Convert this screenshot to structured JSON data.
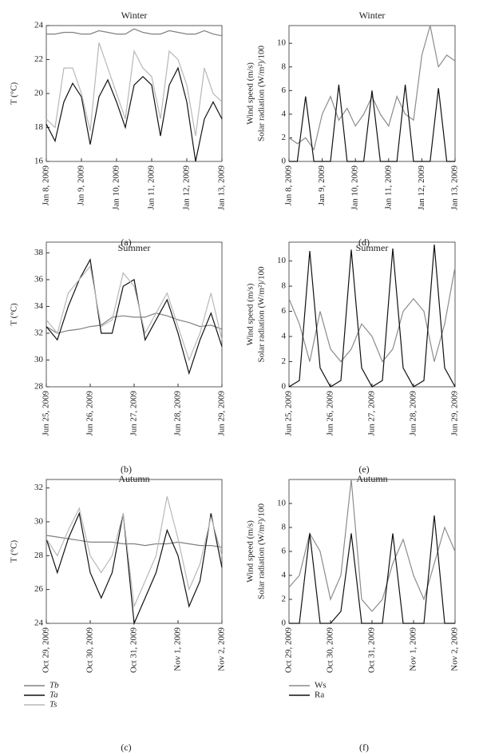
{
  "chart_data": [
    {
      "type": "line",
      "title": "Winter",
      "caption": "(a)",
      "ylabel": [
        "T (°C)"
      ],
      "x": [
        8,
        8.25,
        8.5,
        8.75,
        9,
        9.25,
        9.5,
        9.75,
        10,
        10.25,
        10.5,
        10.75,
        11,
        11.25,
        11.5,
        11.75,
        12,
        12.25,
        12.5,
        12.75,
        13
      ],
      "xlim": [
        8,
        13
      ],
      "xticks": [
        {
          "value": 8,
          "label": "Jan 8, 2009"
        },
        {
          "value": 9,
          "label": "Jan 9, 2009"
        },
        {
          "value": 10,
          "label": "Jan 10, 2009"
        },
        {
          "value": 11,
          "label": "Jan 11, 2009"
        },
        {
          "value": 12,
          "label": "Jan 12, 2009"
        },
        {
          "value": 13,
          "label": "Jan 13, 2009"
        }
      ],
      "ylim": [
        16,
        24
      ],
      "yticks": [
        16,
        18,
        20,
        22,
        24
      ],
      "legend": false,
      "series": [
        {
          "name": "Tb",
          "color": "#808080",
          "values": [
            23.5,
            23.5,
            23.6,
            23.6,
            23.5,
            23.5,
            23.7,
            23.6,
            23.5,
            23.5,
            23.8,
            23.6,
            23.5,
            23.5,
            23.7,
            23.6,
            23.5,
            23.5,
            23.7,
            23.5,
            23.4
          ]
        },
        {
          "name": "Ta",
          "color": "#111111",
          "values": [
            18.2,
            17.2,
            19.5,
            20.6,
            19.8,
            17.0,
            19.8,
            20.8,
            19.5,
            18.0,
            20.5,
            21.0,
            20.5,
            17.5,
            20.5,
            21.5,
            19.5,
            16.0,
            18.5,
            19.5,
            18.5
          ]
        },
        {
          "name": "Ts",
          "color": "#b8b8b8",
          "values": [
            18.5,
            18.0,
            21.5,
            21.5,
            20.0,
            17.8,
            23.0,
            21.5,
            20.0,
            18.5,
            22.5,
            21.5,
            21.0,
            18.5,
            22.5,
            22.0,
            20.5,
            17.5,
            21.5,
            20.0,
            19.5
          ]
        }
      ]
    },
    {
      "type": "line",
      "title": "Summer",
      "caption": "(b)",
      "ylabel": [
        "T (°C)"
      ],
      "x": [
        176,
        176.25,
        176.5,
        176.75,
        177,
        177.25,
        177.5,
        177.75,
        178,
        178.25,
        178.5,
        178.75,
        179,
        179.25,
        179.5,
        179.75,
        180
      ],
      "xlim": [
        176,
        180
      ],
      "xticks": [
        {
          "value": 176,
          "label": "Jun 25, 2009"
        },
        {
          "value": 177,
          "label": "Jun 26, 2009"
        },
        {
          "value": 178,
          "label": "Jun 27, 2009"
        },
        {
          "value": 179,
          "label": "Jun 28, 2009"
        },
        {
          "value": 180,
          "label": "Jun 29, 2009"
        }
      ],
      "ylim": [
        28,
        38.8
      ],
      "yticks": [
        28,
        30,
        32,
        34,
        36,
        38
      ],
      "legend": false,
      "series": [
        {
          "name": "Tb",
          "color": "#808080",
          "values": [
            32.5,
            32,
            32.2,
            32.3,
            32.5,
            32.6,
            33.2,
            33.3,
            33.2,
            33.2,
            33.5,
            33.3,
            33,
            32.8,
            32.5,
            32.6,
            32.3
          ]
        },
        {
          "name": "Ta",
          "color": "#111111",
          "values": [
            32.5,
            31.5,
            34,
            36,
            37.5,
            32,
            32,
            35.5,
            36,
            31.5,
            33,
            34.5,
            32,
            29,
            31.5,
            33.5,
            31
          ]
        },
        {
          "name": "Ts",
          "color": "#b8b8b8",
          "values": [
            33,
            32,
            35,
            36,
            37,
            32.5,
            33,
            36.5,
            35.5,
            32,
            33.5,
            35,
            32.5,
            30,
            32,
            35,
            31.5
          ]
        }
      ]
    },
    {
      "type": "line",
      "title": "Autumn",
      "caption": "(c)",
      "ylabel": [
        "T (°C)"
      ],
      "x": [
        302,
        302.25,
        302.5,
        302.75,
        303,
        303.25,
        303.5,
        303.75,
        304,
        304.25,
        304.5,
        304.75,
        305,
        305.25,
        305.5,
        305.75,
        306
      ],
      "xlim": [
        302,
        306
      ],
      "xticks": [
        {
          "value": 302,
          "label": "Oct 29, 2009"
        },
        {
          "value": 303,
          "label": "Oct 30, 2009"
        },
        {
          "value": 304,
          "label": "Oct 31, 2009"
        },
        {
          "value": 305,
          "label": "Nov 1, 2009"
        },
        {
          "value": 306,
          "label": "Nov 2, 2009"
        }
      ],
      "ylim": [
        24,
        32.5
      ],
      "yticks": [
        24,
        26,
        28,
        30,
        32
      ],
      "legend": true,
      "series": [
        {
          "name": "Tb",
          "color": "#808080",
          "values": [
            29.2,
            29.1,
            29,
            28.9,
            28.8,
            28.8,
            28.8,
            28.7,
            28.7,
            28.6,
            28.7,
            28.7,
            28.8,
            28.7,
            28.6,
            28.6,
            28.5
          ]
        },
        {
          "name": "Ta",
          "color": "#111111",
          "values": [
            29,
            27,
            29,
            30.5,
            27,
            25.5,
            27,
            30.5,
            24,
            25.5,
            27,
            29.5,
            28,
            25,
            26.5,
            30.5,
            27.3
          ]
        },
        {
          "name": "Ts",
          "color": "#b8b8b8",
          "values": [
            29,
            28,
            29.5,
            30.8,
            28,
            27,
            28,
            30.5,
            25,
            26.5,
            28,
            31.5,
            29,
            26,
            27.5,
            30.3,
            28
          ]
        }
      ]
    },
    {
      "type": "line",
      "title": "Winter",
      "caption": "(d)",
      "ylabel": [
        "Wind speed (m/s)",
        "Solar radiation (W/m²)/100"
      ],
      "x": [
        8,
        8.25,
        8.5,
        8.75,
        9,
        9.25,
        9.5,
        9.75,
        10,
        10.25,
        10.5,
        10.75,
        11,
        11.25,
        11.5,
        11.75,
        12,
        12.25,
        12.5,
        12.75,
        13
      ],
      "xlim": [
        8,
        13
      ],
      "xticks": [
        {
          "value": 8,
          "label": "Jan 8, 2009"
        },
        {
          "value": 9,
          "label": "Jan 9, 2009"
        },
        {
          "value": 10,
          "label": "Jan 10, 2009"
        },
        {
          "value": 11,
          "label": "Jan 11, 2009"
        },
        {
          "value": 12,
          "label": "Jan 12, 2009"
        },
        {
          "value": 13,
          "label": "Jan 13, 2009"
        }
      ],
      "ylim": [
        0,
        11.5
      ],
      "yticks": [
        0,
        2,
        4,
        6,
        8,
        10
      ],
      "legend": false,
      "series": [
        {
          "name": "Ws",
          "color": "#8c8c8c",
          "values": [
            2,
            1.5,
            2,
            1,
            4,
            5.5,
            3.5,
            4.5,
            3,
            4,
            5.5,
            4,
            3,
            5.5,
            4,
            3.5,
            9,
            11.5,
            8,
            9,
            8.5
          ]
        },
        {
          "name": "Ra",
          "color": "#111111",
          "values": [
            0,
            0,
            5.5,
            0,
            0,
            0,
            6.5,
            0,
            0,
            0,
            6,
            0,
            0,
            0,
            6.5,
            0,
            0,
            0,
            6.2,
            0,
            0
          ]
        }
      ]
    },
    {
      "type": "line",
      "title": "Summer",
      "caption": "(e)",
      "ylabel": [
        "Wind speed (m/s)",
        "Solar radiation (W/m²)/100"
      ],
      "x": [
        176,
        176.25,
        176.5,
        176.75,
        177,
        177.25,
        177.5,
        177.75,
        178,
        178.25,
        178.5,
        178.75,
        179,
        179.25,
        179.5,
        179.75,
        180
      ],
      "xlim": [
        176,
        180
      ],
      "xticks": [
        {
          "value": 176,
          "label": "Jun 25, 2009"
        },
        {
          "value": 177,
          "label": "Jun 26, 2009"
        },
        {
          "value": 178,
          "label": "Jun 27, 2009"
        },
        {
          "value": 179,
          "label": "Jun 28, 2009"
        },
        {
          "value": 180,
          "label": "Jun 29, 2009"
        }
      ],
      "ylim": [
        0,
        11.5
      ],
      "yticks": [
        0,
        2,
        4,
        6,
        8,
        10
      ],
      "legend": false,
      "series": [
        {
          "name": "Ws",
          "color": "#8c8c8c",
          "values": [
            7,
            5,
            2,
            6,
            3,
            2,
            3,
            5,
            4,
            2,
            3,
            6,
            7,
            6,
            2,
            5,
            9.5
          ]
        },
        {
          "name": "Ra",
          "color": "#111111",
          "values": [
            0,
            0.5,
            10.8,
            1.5,
            0,
            0.5,
            10.9,
            1.5,
            0,
            0.5,
            11,
            1.5,
            0,
            0.5,
            11.3,
            1.5,
            0
          ]
        }
      ]
    },
    {
      "type": "line",
      "title": "Autumn",
      "caption": "(f)",
      "ylabel": [
        "Wind speed (m/s)",
        "Solar radiation (W/m²)/100"
      ],
      "x": [
        302,
        302.25,
        302.5,
        302.75,
        303,
        303.25,
        303.5,
        303.75,
        304,
        304.25,
        304.5,
        304.75,
        305,
        305.25,
        305.5,
        305.75,
        306
      ],
      "xlim": [
        302,
        306
      ],
      "xticks": [
        {
          "value": 302,
          "label": "Oct 29, 2009"
        },
        {
          "value": 303,
          "label": "Oct 30, 2009"
        },
        {
          "value": 304,
          "label": "Oct 31, 2009"
        },
        {
          "value": 305,
          "label": "Nov 1, 2009"
        },
        {
          "value": 306,
          "label": "Nov 2, 2009"
        }
      ],
      "ylim": [
        0,
        12
      ],
      "yticks": [
        0,
        2,
        4,
        6,
        8,
        10
      ],
      "legend": true,
      "series": [
        {
          "name": "Ws",
          "color": "#8c8c8c",
          "values": [
            3,
            4,
            7.5,
            6,
            2,
            4,
            12,
            2,
            1,
            2,
            5,
            7,
            4,
            2,
            5,
            8,
            6
          ]
        },
        {
          "name": "Ra",
          "color": "#111111",
          "values": [
            0,
            0,
            7.5,
            0,
            0,
            1,
            7.5,
            0,
            0,
            0,
            7.5,
            0,
            0,
            0,
            9,
            0,
            0
          ]
        }
      ]
    }
  ]
}
